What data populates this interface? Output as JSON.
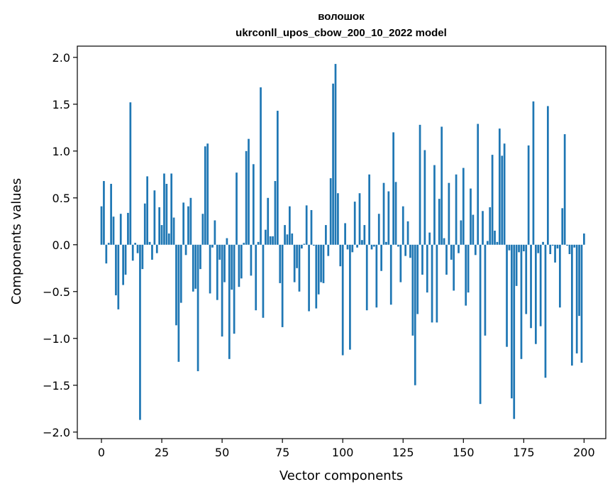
{
  "chart_data": {
    "type": "bar",
    "title": "волошок",
    "subtitle": "ukrconll_upos_cbow_200_10_2022 model",
    "xlabel": "Vector components",
    "ylabel": "Components values",
    "xlim": [
      -10,
      209
    ],
    "ylim": [
      -2.07,
      2.12
    ],
    "xticks": [
      0,
      25,
      50,
      75,
      100,
      125,
      150,
      175,
      200
    ],
    "yticks": [
      -2.0,
      -1.5,
      -1.0,
      -0.5,
      0.0,
      0.5,
      1.0,
      1.5,
      2.0
    ],
    "ytick_labels": [
      "−2.0",
      "−1.5",
      "−1.0",
      "−0.5",
      "0.0",
      "0.5",
      "1.0",
      "1.5",
      "2.0"
    ],
    "grid": false,
    "bar_color": "#1f77b4",
    "values": [
      0.41,
      0.68,
      -0.2,
      0.02,
      0.65,
      0.3,
      -0.54,
      -0.69,
      0.33,
      -0.43,
      -0.32,
      0.34,
      1.52,
      -0.17,
      0.02,
      -0.09,
      -1.87,
      -0.26,
      0.44,
      0.73,
      0.03,
      -0.16,
      0.58,
      -0.09,
      0.4,
      0.21,
      0.76,
      0.65,
      0.12,
      0.76,
      0.29,
      -0.86,
      -1.25,
      -0.62,
      0.45,
      -0.11,
      0.41,
      0.5,
      -0.5,
      -0.47,
      -1.35,
      -0.26,
      0.33,
      1.05,
      1.08,
      -0.52,
      -0.03,
      0.26,
      -0.59,
      -0.16,
      -0.98,
      -0.4,
      0.07,
      -1.22,
      -0.48,
      -0.95,
      0.77,
      -0.45,
      -0.36,
      0.02,
      1.0,
      1.13,
      -0.33,
      0.86,
      -0.7,
      0.03,
      1.68,
      -0.78,
      0.16,
      0.5,
      0.09,
      0.09,
      0.68,
      1.43,
      -0.41,
      -0.88,
      0.21,
      0.11,
      0.41,
      0.12,
      -0.4,
      -0.25,
      -0.5,
      -0.04,
      0.01,
      0.42,
      -0.71,
      0.37,
      -0.01,
      -0.68,
      -0.53,
      -0.4,
      -0.41,
      0.21,
      -0.12,
      0.71,
      1.72,
      1.93,
      0.55,
      -0.23,
      -1.18,
      0.23,
      -0.05,
      -1.12,
      -0.08,
      0.46,
      -0.03,
      0.55,
      0.05,
      0.21,
      -0.7,
      0.75,
      -0.05,
      -0.02,
      -0.67,
      0.33,
      -0.28,
      0.66,
      0.03,
      0.57,
      -0.64,
      1.2,
      0.67,
      -0.02,
      -0.4,
      0.41,
      -0.12,
      0.25,
      -0.14,
      -0.97,
      -1.5,
      -0.74,
      1.28,
      -0.32,
      1.01,
      -0.51,
      0.13,
      -0.83,
      0.85,
      -0.83,
      0.49,
      1.26,
      0.07,
      -0.32,
      0.66,
      -0.16,
      -0.49,
      0.75,
      -0.09,
      0.26,
      0.82,
      -0.65,
      -0.51,
      0.6,
      0.32,
      -0.11,
      1.29,
      -1.7,
      0.36,
      -0.97,
      0.04,
      0.4,
      0.96,
      0.15,
      0.03,
      1.24,
      0.95,
      1.08,
      -1.09,
      -0.06,
      -1.64,
      -1.86,
      -0.44,
      -0.08,
      -1.22,
      -0.07,
      -0.74,
      1.06,
      -0.89,
      1.53,
      -1.06,
      -0.09,
      -0.87,
      0.03,
      -1.42,
      1.48,
      -0.1,
      -0.01,
      -0.19,
      -0.04,
      -0.67,
      0.39,
      1.18,
      -0.01,
      -0.1,
      -1.29,
      -0.03,
      -1.16,
      -0.76,
      -1.26,
      0.12
    ]
  }
}
